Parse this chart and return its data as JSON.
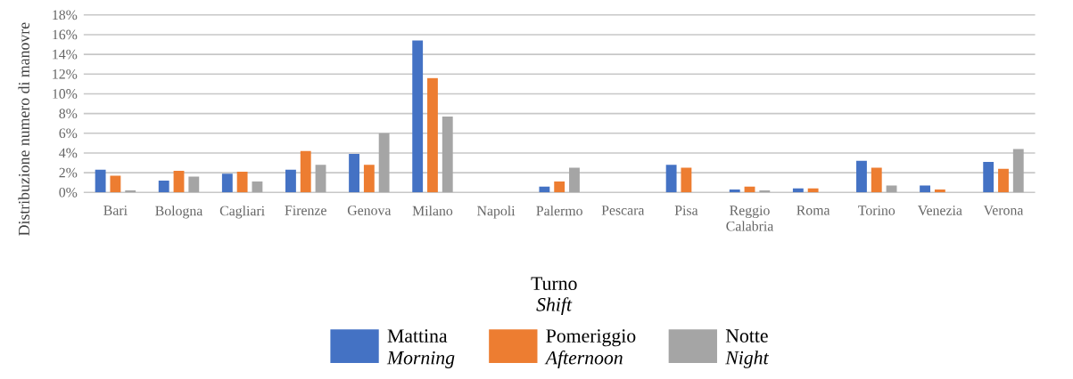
{
  "chart_data": {
    "type": "bar",
    "ylabel": "Distribuzione numero di manovre",
    "legend_title": "Turno *Shift*",
    "legend": "bottom",
    "grid": "y",
    "categories": [
      "Bari",
      "Bologna",
      "Cagliari",
      "Firenze",
      "Genova",
      "Milano",
      "Napoli",
      "Palermo",
      "Pescara",
      "Pisa",
      "Reggio Calabria",
      "Roma",
      "Torino",
      "Venezia",
      "Verona"
    ],
    "ylim": [
      0,
      18
    ],
    "yticks": [
      {
        "value": 0,
        "label": "0%"
      },
      {
        "value": 2,
        "label": "2%"
      },
      {
        "value": 4,
        "label": "4%"
      },
      {
        "value": 6,
        "label": "6%"
      },
      {
        "value": 8,
        "label": "8%"
      },
      {
        "value": 10,
        "label": "10%"
      },
      {
        "value": 12,
        "label": "12%"
      },
      {
        "value": 14,
        "label": "14%"
      },
      {
        "value": 16,
        "label": "16%"
      },
      {
        "value": 18,
        "label": "18%"
      }
    ],
    "series": [
      {
        "name": "Mattina *Morning*",
        "color": "#4472c4",
        "values": [
          2.3,
          1.2,
          1.9,
          2.3,
          3.9,
          15.4,
          0,
          0.6,
          0,
          2.8,
          0.3,
          0.4,
          3.2,
          0.7,
          3.1
        ]
      },
      {
        "name": "Pomeriggio *Afternoon*",
        "color": "#ed7d31",
        "values": [
          1.7,
          2.2,
          2.1,
          4.2,
          2.8,
          11.6,
          0,
          1.1,
          0,
          2.5,
          0.6,
          0.4,
          2.5,
          0.3,
          2.4
        ]
      },
      {
        "name": "Notte *Night*",
        "color": "#a5a5a5",
        "values": [
          0.2,
          1.6,
          1.1,
          2.8,
          6.0,
          7.7,
          0,
          2.5,
          0,
          0,
          0.2,
          0,
          0.7,
          0,
          4.4
        ]
      }
    ]
  }
}
